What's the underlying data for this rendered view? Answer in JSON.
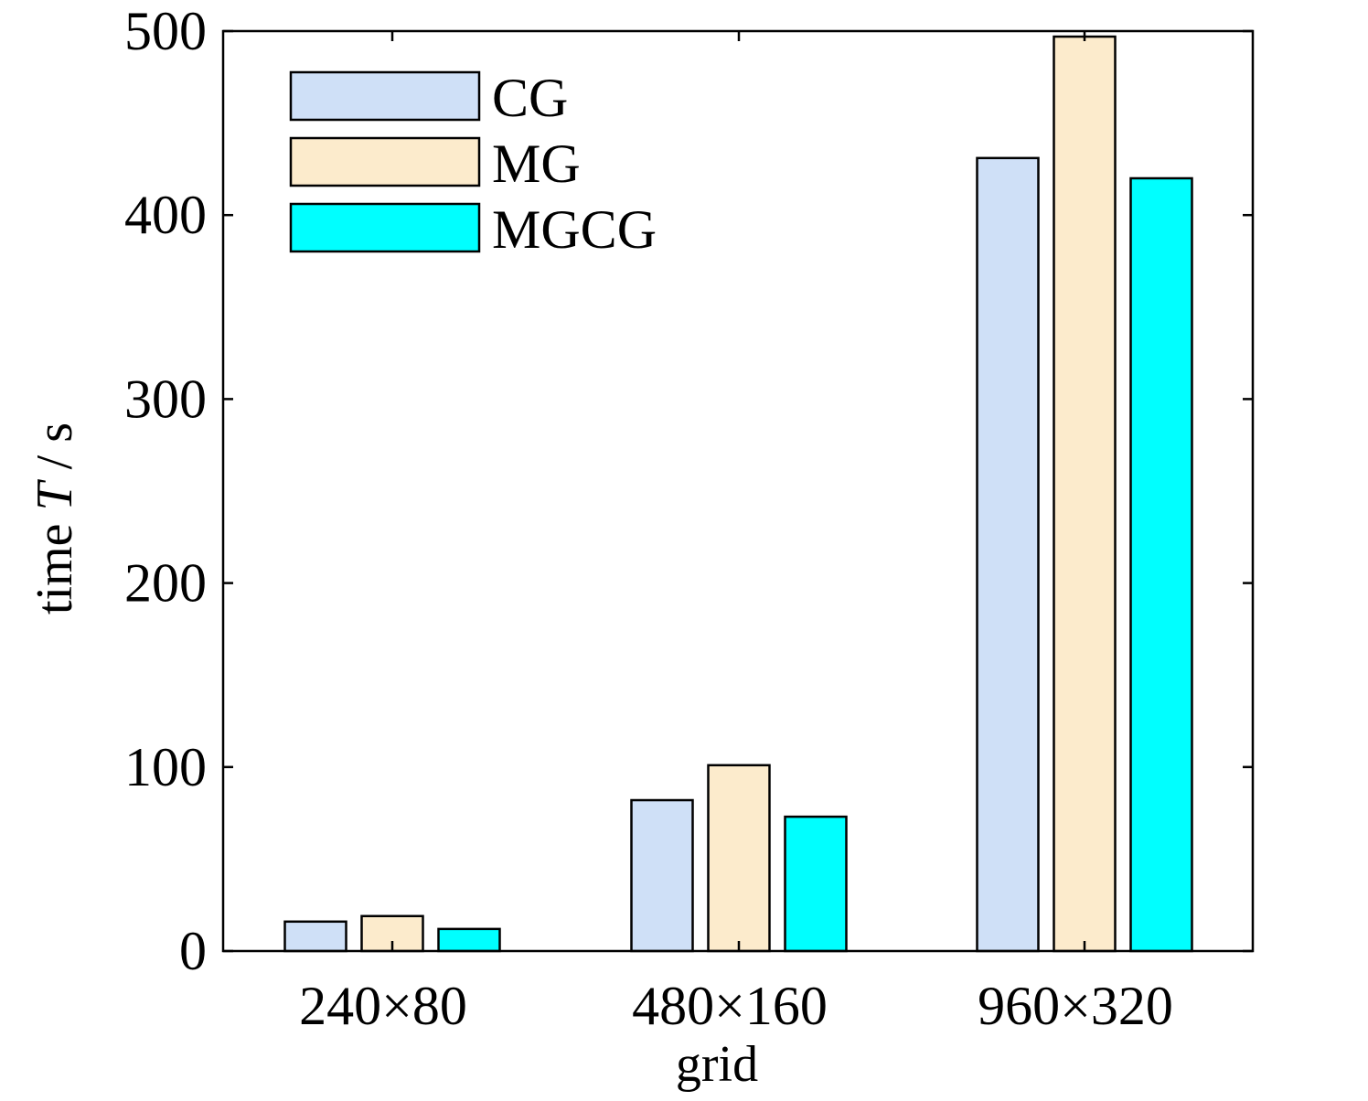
{
  "chart_data": {
    "type": "bar",
    "xlabel": "grid",
    "ylabel_prefix": "time ",
    "ylabel_var": "T",
    "ylabel_suffix": " / s",
    "categories": [
      "240×80",
      "480×160",
      "960×320"
    ],
    "series": [
      {
        "name": "CG",
        "color": "#cfe0f7",
        "values": [
          16,
          82,
          431
        ]
      },
      {
        "name": "MG",
        "color": "#fcebcc",
        "values": [
          19,
          101,
          497
        ]
      },
      {
        "name": "MGCG",
        "color": "#00ffff",
        "values": [
          12,
          73,
          420
        ]
      }
    ],
    "ylim": [
      0,
      500
    ],
    "yticks": [
      0,
      100,
      200,
      300,
      400,
      500
    ],
    "grid": false,
    "legend_position": "top-left"
  }
}
